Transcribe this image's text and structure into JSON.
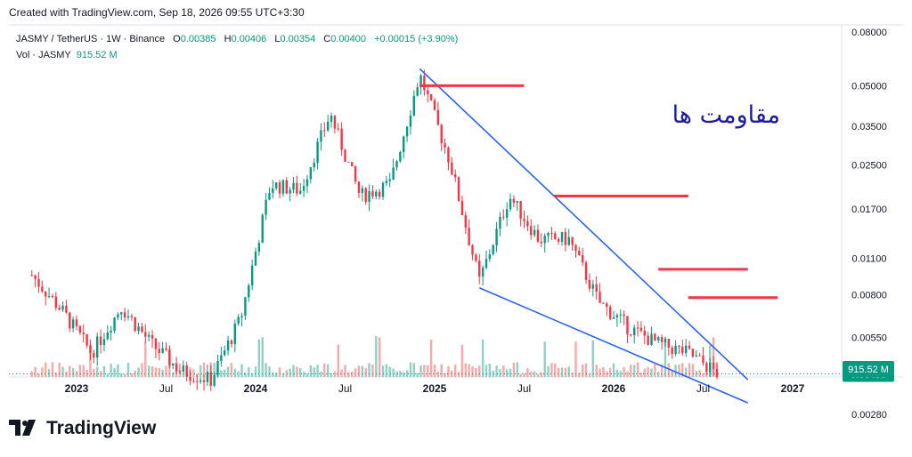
{
  "header": {
    "created": "Created with TradingView.com, Sep 18, 2026 09:55 UTC+3:30",
    "symbol": "JASMY / TetherUS · 1W · Binance",
    "open_label": "O",
    "open": "0.00385",
    "high_label": "H",
    "high": "0.00406",
    "low_label": "L",
    "low": "0.00354",
    "close_label": "C",
    "close": "0.00400",
    "change": "+0.00015 (+3.90%)",
    "vol_label": "Vol · JASMY",
    "vol_value": "915.52 M"
  },
  "brand": {
    "name": "TradingView",
    "icon": "tradingview-logo-icon"
  },
  "colors": {
    "up": "#089981",
    "down": "#f23645",
    "trend": "#2962ff",
    "resistance": "#f23645",
    "volume_up": "#8fd2c5",
    "volume_down": "#f7a9a9"
  },
  "annotation": "مقاومت ها",
  "chart_data": {
    "type": "candlestick",
    "y_scale": "log",
    "y_ticks": [
      "0.08000",
      "0.05000",
      "0.03500",
      "0.02500",
      "0.01700",
      "0.01100",
      "0.00800",
      "0.00550",
      "0.00400",
      "0.00280"
    ],
    "x_ticks": [
      "2023",
      "Jul",
      "2024",
      "Jul",
      "2025",
      "Jul",
      "2026",
      "Jul",
      "2027"
    ],
    "last_price": "0.00400",
    "last_volume": "915.52 M",
    "price_path": [
      {
        "date": "2022-10",
        "price": 0.0095
      },
      {
        "date": "2022-12",
        "price": 0.007
      },
      {
        "date": "2023-02",
        "price": 0.0048
      },
      {
        "date": "2023-04",
        "price": 0.0072
      },
      {
        "date": "2023-06",
        "price": 0.0052
      },
      {
        "date": "2023-08",
        "price": 0.0041
      },
      {
        "date": "2023-10",
        "price": 0.0038
      },
      {
        "date": "2023-12",
        "price": 0.0065
      },
      {
        "date": "2024-02",
        "price": 0.021
      },
      {
        "date": "2024-04",
        "price": 0.02
      },
      {
        "date": "2024-06",
        "price": 0.039
      },
      {
        "date": "2024-08",
        "price": 0.019
      },
      {
        "date": "2024-10",
        "price": 0.021
      },
      {
        "date": "2024-12",
        "price": 0.055
      },
      {
        "date": "2025-02",
        "price": 0.026
      },
      {
        "date": "2025-04",
        "price": 0.009
      },
      {
        "date": "2025-06",
        "price": 0.019
      },
      {
        "date": "2025-08",
        "price": 0.013
      },
      {
        "date": "2025-10",
        "price": 0.013
      },
      {
        "date": "2025-12",
        "price": 0.0075
      },
      {
        "date": "2026-02",
        "price": 0.006
      },
      {
        "date": "2026-04",
        "price": 0.0052
      },
      {
        "date": "2026-06",
        "price": 0.0048
      },
      {
        "date": "2026-08",
        "price": 0.004
      }
    ],
    "trendlines": [
      {
        "name": "upper",
        "from": {
          "date": "2024-12",
          "price": 0.058
        },
        "to": {
          "date": "2026-10",
          "price": 0.0038
        }
      },
      {
        "name": "lower",
        "from": {
          "date": "2025-04",
          "price": 0.0085
        },
        "to": {
          "date": "2026-10",
          "price": 0.0031
        }
      }
    ],
    "resistance_levels": [
      {
        "price": 0.05,
        "from": "2024-12",
        "to": "2025-07"
      },
      {
        "price": 0.019,
        "from": "2025-09",
        "to": "2026-06"
      },
      {
        "price": 0.01,
        "from": "2026-04",
        "to": "2026-10"
      },
      {
        "price": 0.0078,
        "from": "2026-06",
        "to": "2026-12"
      }
    ]
  }
}
